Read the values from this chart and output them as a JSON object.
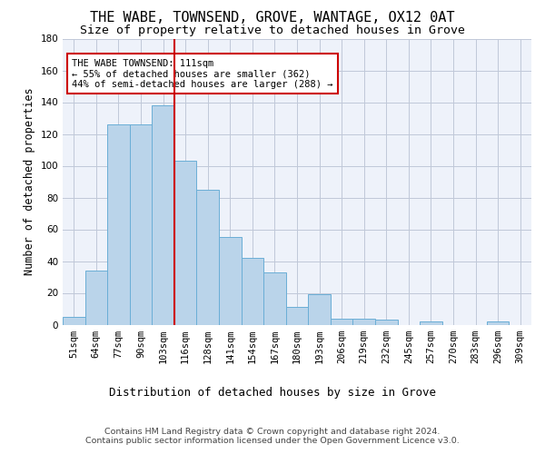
{
  "title": "THE WABE, TOWNSEND, GROVE, WANTAGE, OX12 0AT",
  "subtitle": "Size of property relative to detached houses in Grove",
  "xlabel": "Distribution of detached houses by size in Grove",
  "ylabel": "Number of detached properties",
  "categories": [
    "51sqm",
    "64sqm",
    "77sqm",
    "90sqm",
    "103sqm",
    "116sqm",
    "128sqm",
    "141sqm",
    "154sqm",
    "167sqm",
    "180sqm",
    "193sqm",
    "206sqm",
    "219sqm",
    "232sqm",
    "245sqm",
    "257sqm",
    "270sqm",
    "283sqm",
    "296sqm",
    "309sqm"
  ],
  "values": [
    5,
    34,
    126,
    126,
    138,
    103,
    85,
    55,
    42,
    33,
    11,
    19,
    4,
    4,
    3,
    0,
    2,
    0,
    0,
    2,
    0
  ],
  "bar_color": "#bad4ea",
  "bar_edge_color": "#6aaed6",
  "vline_x": 5.0,
  "vline_color": "#cc0000",
  "annotation_text": "THE WABE TOWNSEND: 111sqm\n← 55% of detached houses are smaller (362)\n44% of semi-detached houses are larger (288) →",
  "annotation_box_color": "#ffffff",
  "annotation_box_edge": "#cc0000",
  "ylim": [
    0,
    180
  ],
  "yticks": [
    0,
    20,
    40,
    60,
    80,
    100,
    120,
    140,
    160,
    180
  ],
  "footer_line1": "Contains HM Land Registry data © Crown copyright and database right 2024.",
  "footer_line2": "Contains public sector information licensed under the Open Government Licence v3.0.",
  "bg_color": "#eef2fa",
  "grid_color": "#c0c8d8",
  "title_fontsize": 11,
  "subtitle_fontsize": 9.5,
  "ylabel_fontsize": 8.5,
  "xlabel_fontsize": 9,
  "tick_fontsize": 7.5,
  "annotation_fontsize": 7.5,
  "footer_fontsize": 6.8
}
